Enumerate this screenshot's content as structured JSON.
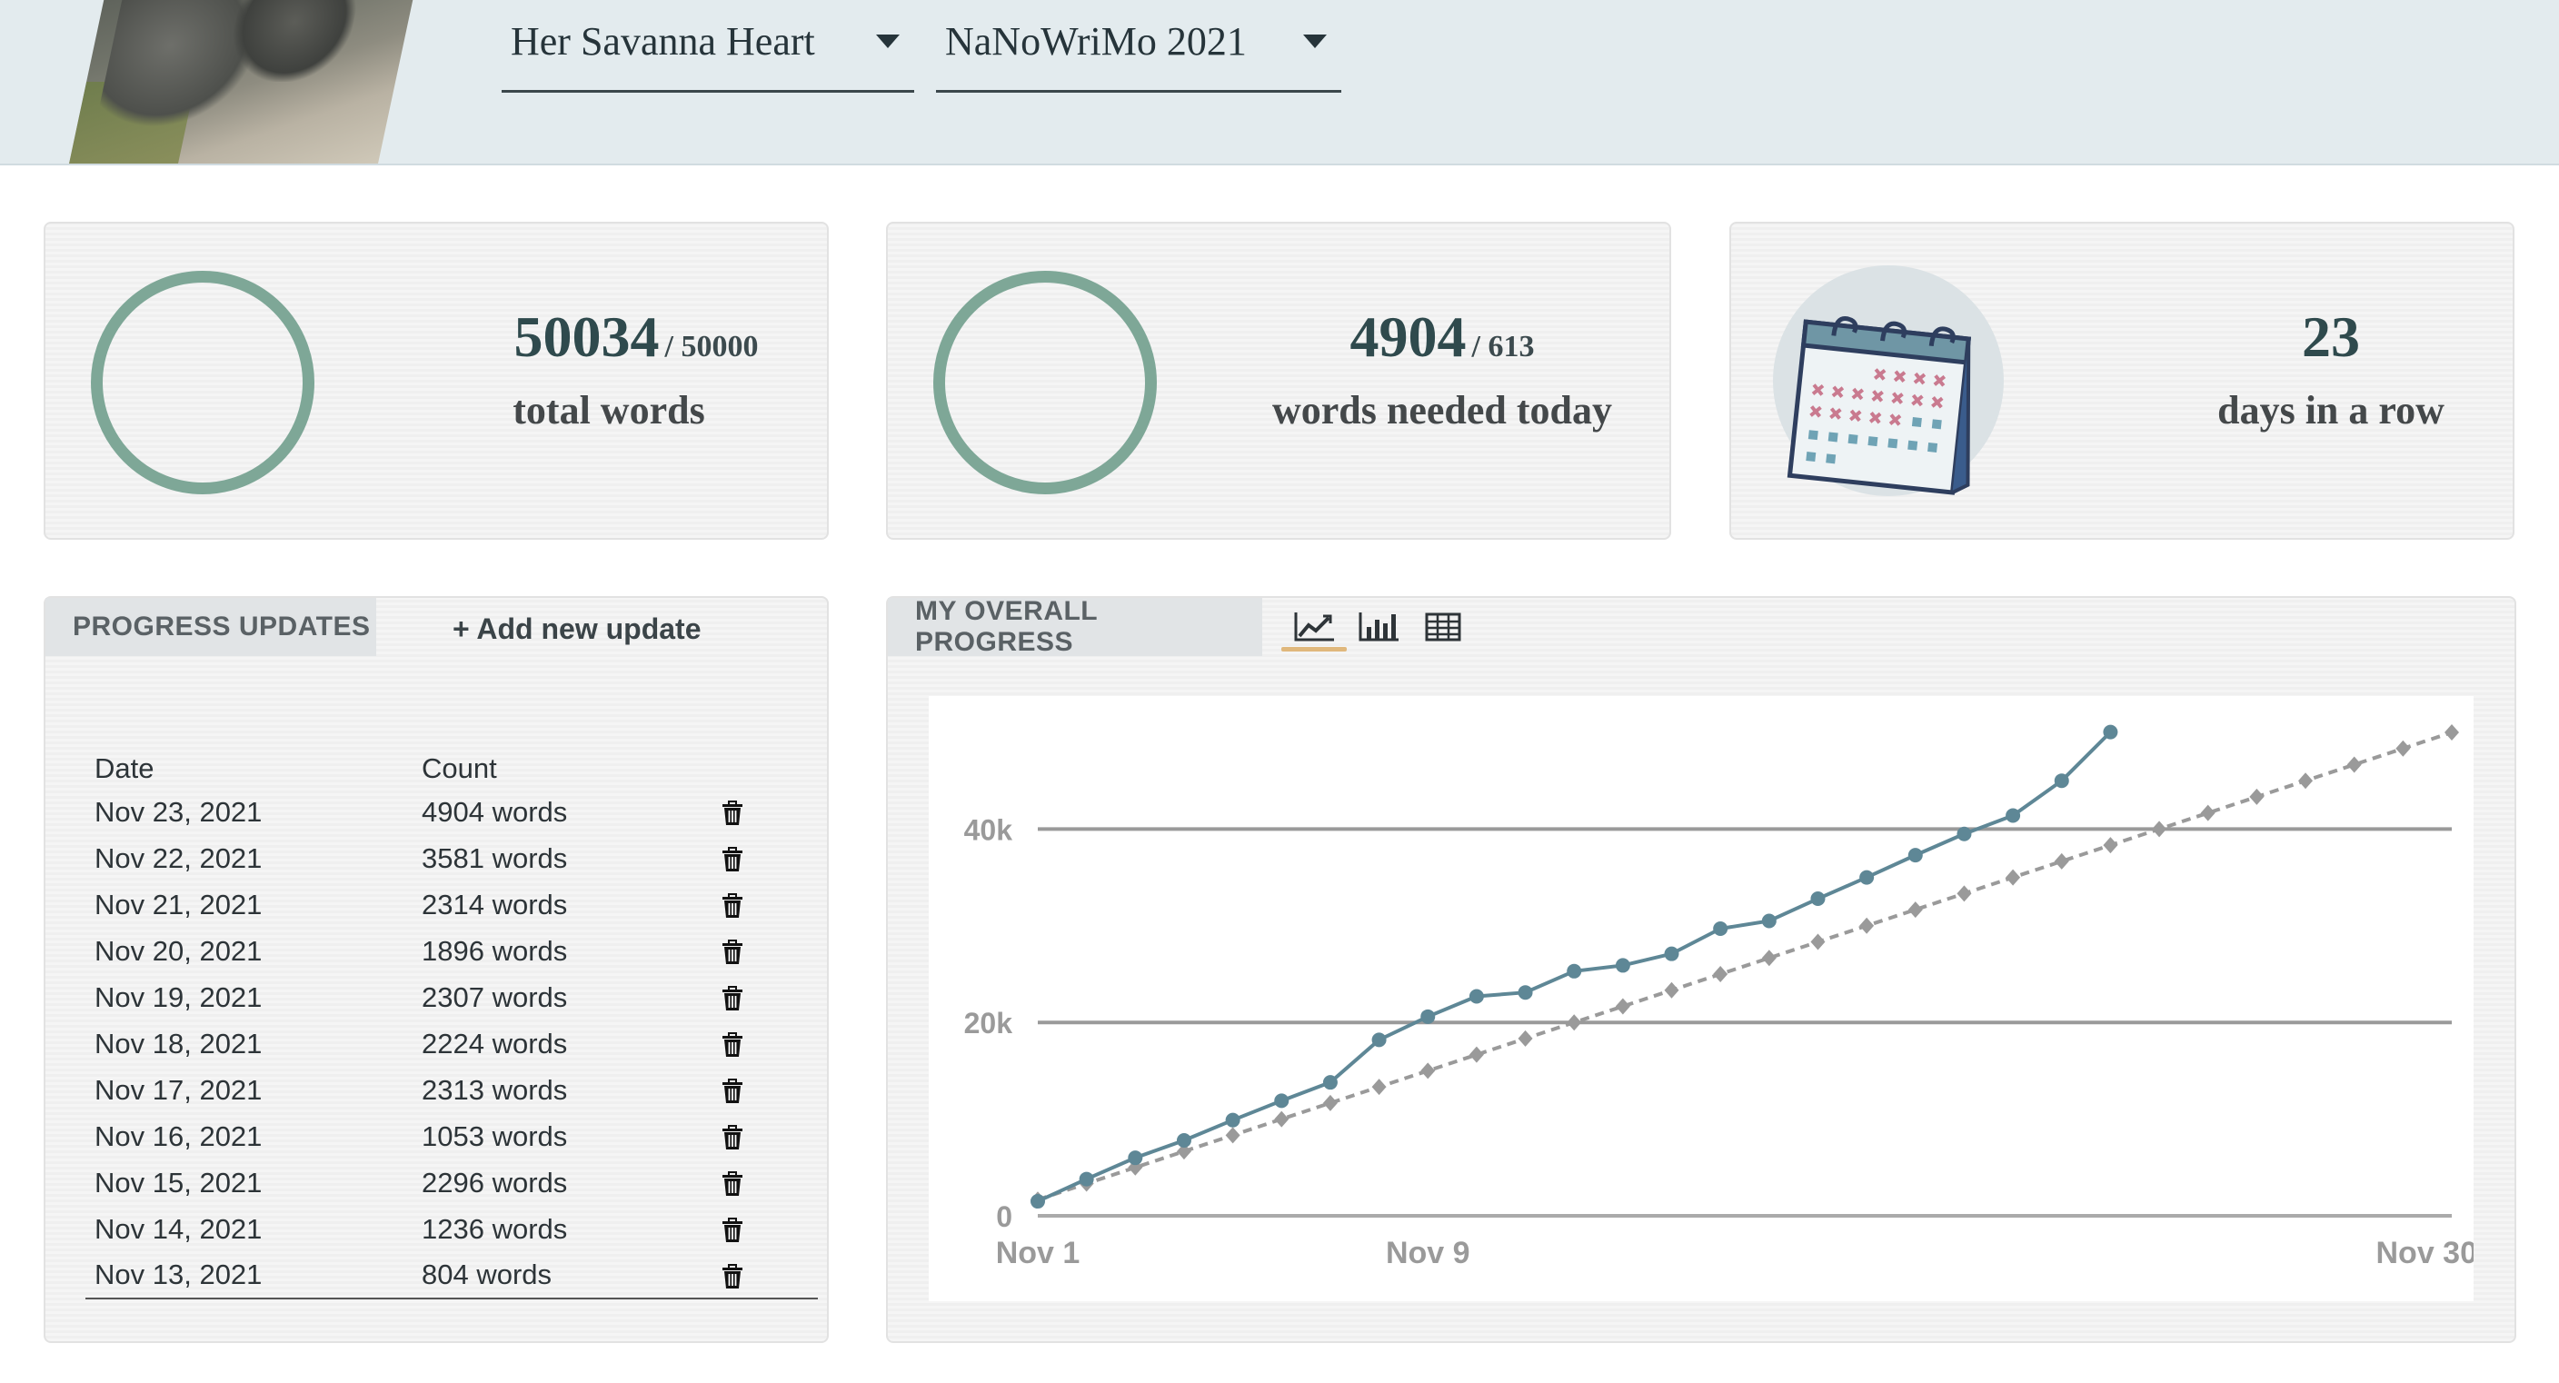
{
  "header": {
    "project_select": "Her Savanna Heart",
    "event_select": "NaNoWriMo 2021"
  },
  "stats": [
    {
      "value": "50034",
      "goal": "/ 50000",
      "label": "total words"
    },
    {
      "value": "4904",
      "goal": "/ 613",
      "label": "words needed today"
    },
    {
      "value": "23",
      "goal": "",
      "label": "days in a row"
    }
  ],
  "progress_updates": {
    "tab_label": "PROGRESS UPDATES",
    "add_button": "+ Add new update",
    "columns": [
      "Date",
      "Count"
    ],
    "rows": [
      {
        "date": "Nov 23, 2021",
        "count": "4904 words"
      },
      {
        "date": "Nov 22, 2021",
        "count": "3581 words"
      },
      {
        "date": "Nov 21, 2021",
        "count": "2314 words"
      },
      {
        "date": "Nov 20, 2021",
        "count": "1896 words"
      },
      {
        "date": "Nov 19, 2021",
        "count": "2307 words"
      },
      {
        "date": "Nov 18, 2021",
        "count": "2224 words"
      },
      {
        "date": "Nov 17, 2021",
        "count": "2313 words"
      },
      {
        "date": "Nov 16, 2021",
        "count": "1053 words"
      },
      {
        "date": "Nov 15, 2021",
        "count": "2296 words"
      },
      {
        "date": "Nov 14, 2021",
        "count": "1236 words"
      },
      {
        "date": "Nov 13, 2021",
        "count": "804 words"
      }
    ]
  },
  "overall_progress": {
    "tab_label": "MY OVERALL PROGRESS",
    "view_icons": [
      "line-chart-icon",
      "bar-chart-icon",
      "table-icon"
    ],
    "active_view": "line-chart-icon"
  },
  "colors": {
    "ring": "#7ea797",
    "actual_line": "#5e8796",
    "goal_line": "#9a9a9a",
    "active_underline": "#e0b87c"
  },
  "chart_data": {
    "type": "line",
    "title": "",
    "xlabel": "",
    "ylabel": "",
    "x_tick_labels": [
      "Nov 1",
      "Nov 9",
      "Nov 30"
    ],
    "y_tick_labels": [
      "0",
      "20k",
      "40k"
    ],
    "xlim": [
      1,
      30
    ],
    "ylim": [
      0,
      50000
    ],
    "grid": true,
    "series": [
      {
        "x": [
          1,
          2,
          3,
          4,
          5,
          6,
          7,
          8,
          9,
          10,
          11,
          12,
          13,
          14,
          15,
          16,
          17,
          18,
          19,
          20,
          21,
          22,
          23
        ],
        "values": [
          1500,
          3800,
          6000,
          7800,
          9900,
          11900,
          13800,
          18200,
          20600,
          22700,
          23100,
          25300,
          25900,
          27100,
          29700,
          30500,
          32800,
          35000,
          37300,
          39500,
          41400,
          45000,
          50034
        ],
        "style": "solid-circle"
      },
      {
        "x": [
          1,
          2,
          3,
          4,
          5,
          6,
          7,
          8,
          9,
          10,
          11,
          12,
          13,
          14,
          15,
          16,
          17,
          18,
          19,
          20,
          21,
          22,
          23,
          24,
          25,
          26,
          27,
          28,
          29,
          30
        ],
        "values": [
          1667,
          3333,
          5000,
          6667,
          8333,
          10000,
          11667,
          13333,
          15000,
          16667,
          18333,
          20000,
          21667,
          23333,
          25000,
          26667,
          28333,
          30000,
          31667,
          33333,
          35000,
          36667,
          38333,
          40000,
          41667,
          43333,
          45000,
          46667,
          48333,
          50000
        ],
        "style": "dashed-diamond"
      }
    ]
  }
}
